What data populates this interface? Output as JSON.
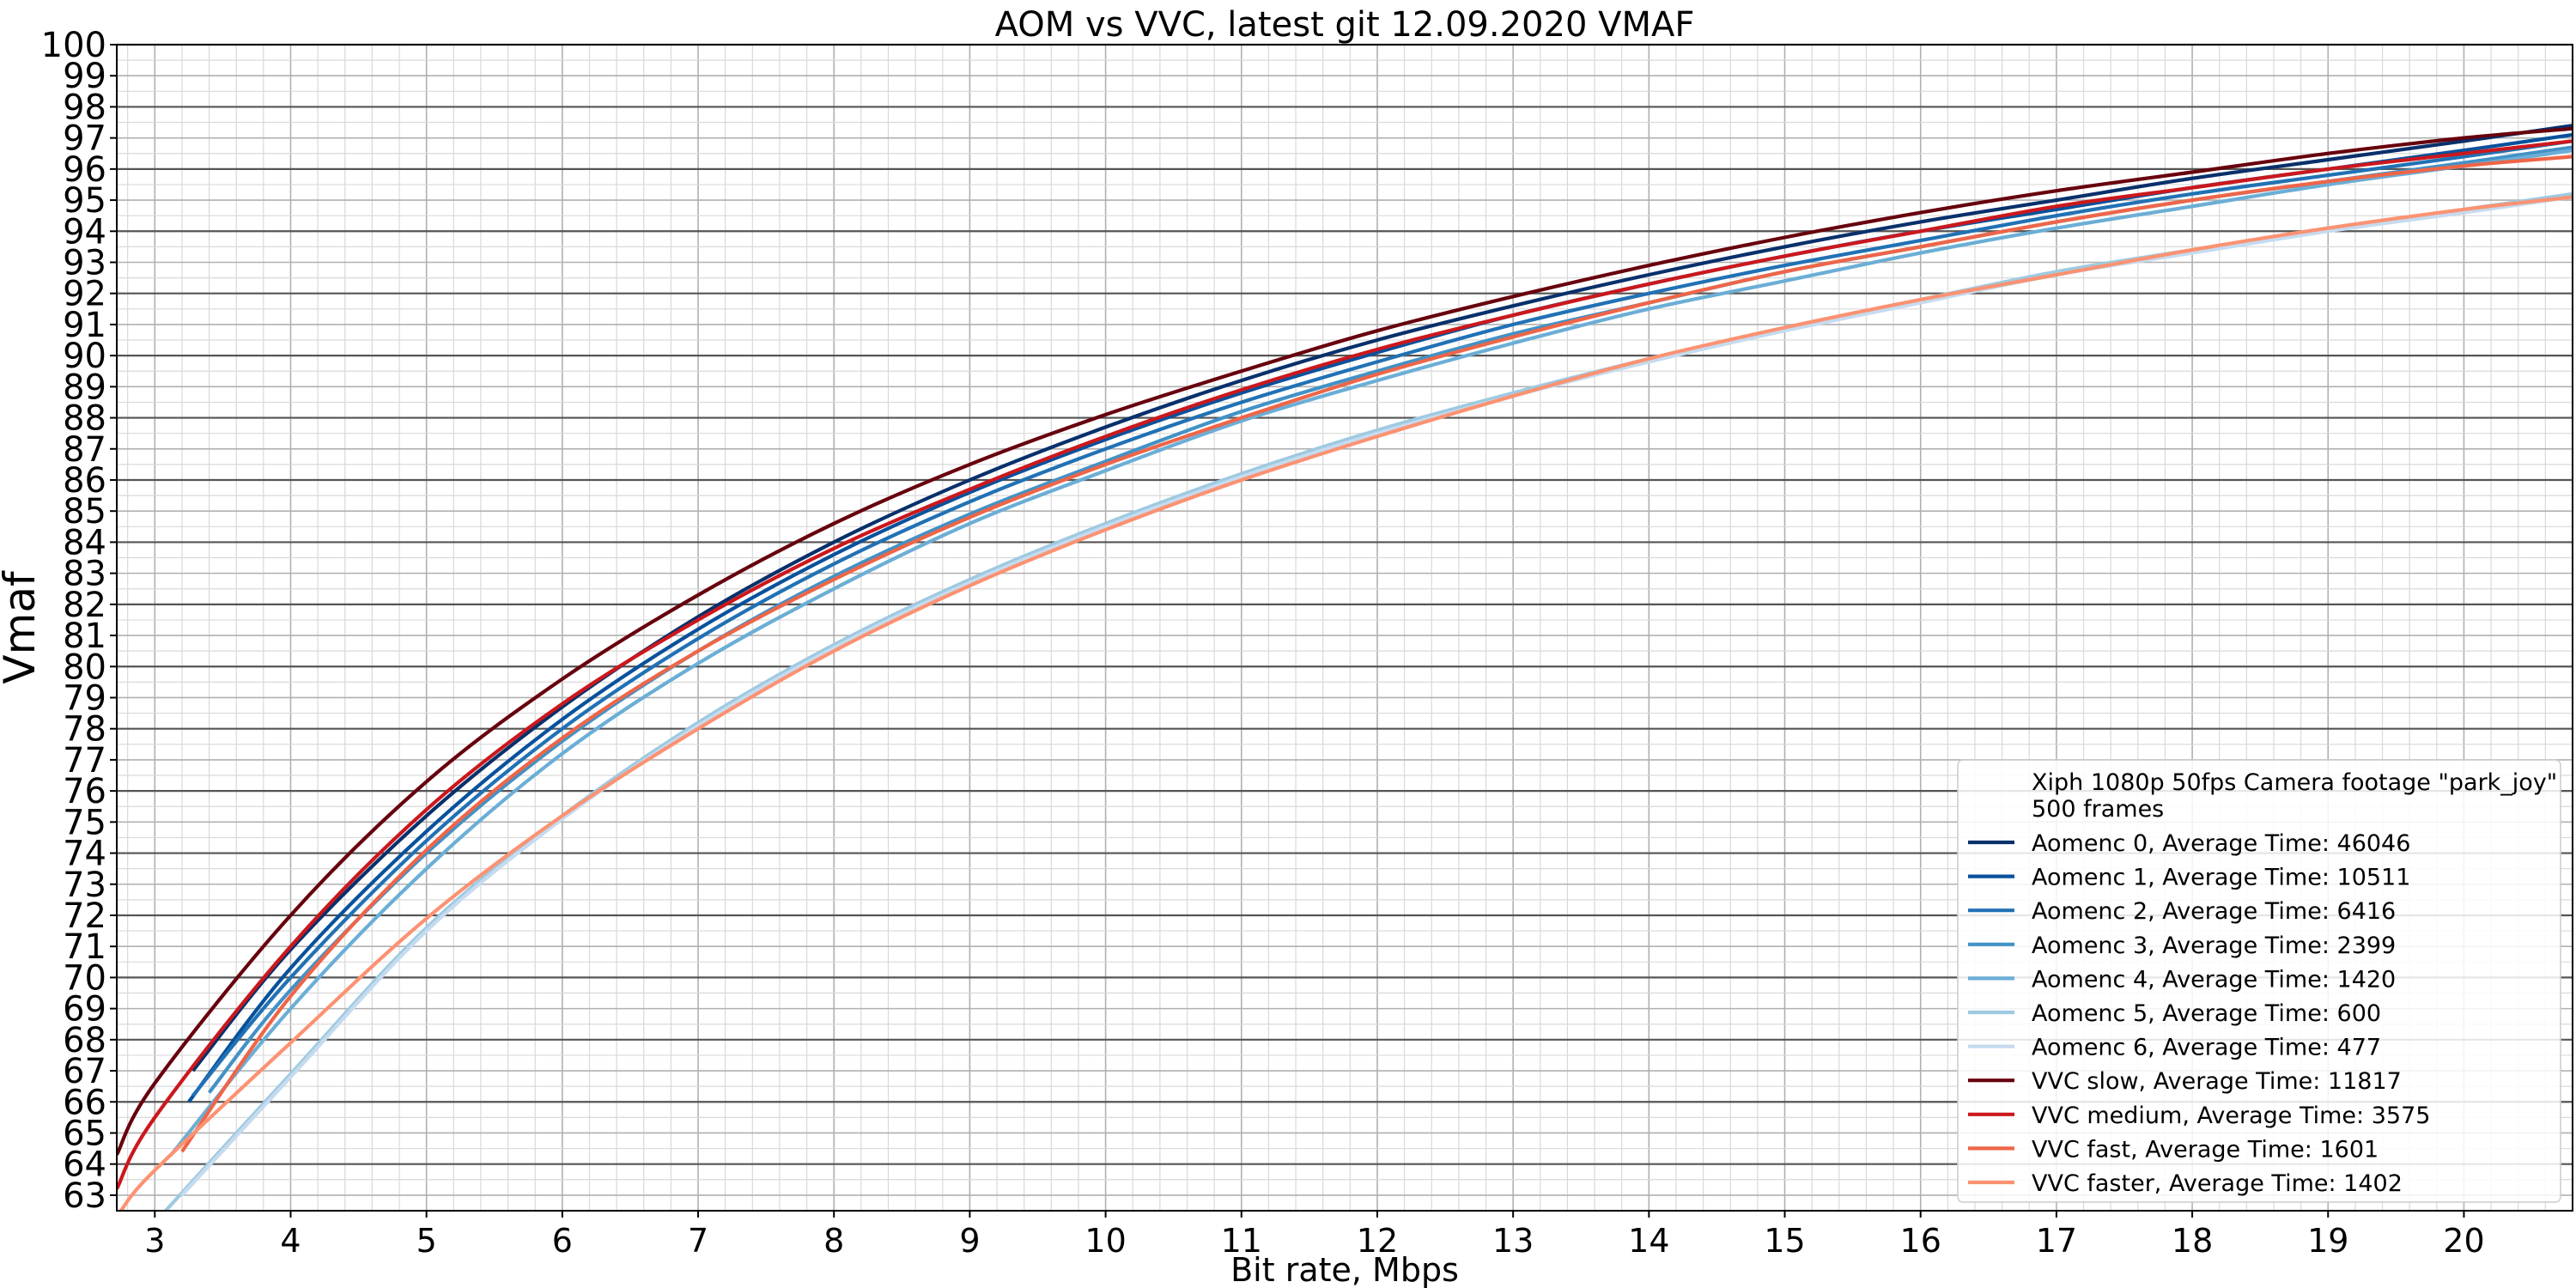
{
  "chart_data": {
    "type": "line",
    "title": "AOM vs VVC, latest git 12.09.2020 VMAF",
    "xlabel": "Bit rate, Mbps",
    "ylabel": "Vmaf",
    "xlim": [
      2.72,
      20.8
    ],
    "ylim": [
      62.5,
      100
    ],
    "x_ticks": [
      "3",
      "4",
      "5",
      "6",
      "7",
      "8",
      "9",
      "10",
      "11",
      "12",
      "13",
      "14",
      "15",
      "16",
      "17",
      "18",
      "19",
      "20"
    ],
    "y_ticks": [
      "63",
      "64",
      "65",
      "66",
      "67",
      "68",
      "69",
      "70",
      "71",
      "72",
      "73",
      "74",
      "75",
      "76",
      "77",
      "78",
      "79",
      "80",
      "81",
      "82",
      "83",
      "84",
      "85",
      "86",
      "87",
      "88",
      "89",
      "90",
      "91",
      "92",
      "93",
      "94",
      "95",
      "96",
      "97",
      "98",
      "99",
      "100"
    ],
    "grid": true,
    "legend": {
      "position": "bottom-right",
      "header": [
        "Xiph 1080p 50fps Camera footage \"park_joy\"",
        "500 frames"
      ]
    },
    "series": [
      {
        "name": "Aomenc 0, Average Time: 46046",
        "color": "#08306b",
        "x": [
          3.28,
          4,
          5,
          6,
          7,
          8,
          9,
          10,
          11,
          12,
          13,
          14,
          15,
          16,
          17,
          18,
          19,
          20,
          20.8
        ],
        "y": [
          67.0,
          70.9,
          75.2,
          78.7,
          81.6,
          84.0,
          86.0,
          87.7,
          89.2,
          90.5,
          91.6,
          92.6,
          93.5,
          94.3,
          95.0,
          95.7,
          96.3,
          96.9,
          97.4
        ]
      },
      {
        "name": "Aomenc 1, Average Time: 10511",
        "color": "#08519c",
        "x": [
          3.25,
          4,
          5,
          6,
          7,
          8,
          9,
          10,
          11,
          12,
          13,
          14,
          15,
          16,
          17,
          18,
          19,
          20,
          20.8
        ],
        "y": [
          66.0,
          70.3,
          74.7,
          78.3,
          81.2,
          83.6,
          85.6,
          87.3,
          88.8,
          90.1,
          91.3,
          92.3,
          93.2,
          94.0,
          94.7,
          95.4,
          96.0,
          96.6,
          97.1
        ]
      },
      {
        "name": "Aomenc 2, Average Time: 6416",
        "color": "#2171b5",
        "x": [
          3.28,
          4,
          5,
          6,
          7,
          8,
          9,
          10,
          11,
          12,
          13,
          14,
          15,
          16,
          17,
          18,
          19,
          20,
          20.8
        ],
        "y": [
          66.2,
          70.0,
          74.4,
          78.0,
          80.9,
          83.3,
          85.3,
          87.0,
          88.5,
          89.8,
          91.0,
          92.0,
          92.9,
          93.7,
          94.5,
          95.2,
          95.8,
          96.4,
          96.9
        ]
      },
      {
        "name": "Aomenc 3, Average Time: 2399",
        "color": "#4292c6",
        "x": [
          3.4,
          4,
          5,
          6,
          7,
          8,
          9,
          10,
          11,
          12,
          13,
          14,
          15,
          16,
          17,
          18,
          19,
          20,
          20.8
        ],
        "y": [
          66.3,
          69.6,
          74.0,
          77.6,
          80.5,
          82.9,
          84.9,
          86.6,
          88.2,
          89.5,
          90.7,
          91.7,
          92.7,
          93.5,
          94.3,
          95.0,
          95.6,
          96.2,
          96.7
        ]
      },
      {
        "name": "Aomenc 4, Average Time: 1420",
        "color": "#6baed6",
        "x": [
          3.12,
          4,
          5,
          6,
          7,
          8,
          9,
          10,
          11,
          12,
          13,
          14,
          15,
          16,
          17,
          18,
          19,
          20,
          20.8
        ],
        "y": [
          64.3,
          69.0,
          73.5,
          77.2,
          80.1,
          82.5,
          84.6,
          86.3,
          87.9,
          89.2,
          90.4,
          91.5,
          92.4,
          93.3,
          94.1,
          94.8,
          95.5,
          96.1,
          96.6
        ]
      },
      {
        "name": "Aomenc 5, Average Time: 600",
        "color": "#9ecae1",
        "x": [
          3.08,
          4,
          5,
          6,
          7,
          8,
          9,
          10,
          11,
          12,
          13,
          14,
          15,
          16,
          17,
          18,
          19,
          20,
          20.8
        ],
        "y": [
          62.5,
          66.9,
          71.6,
          75.2,
          78.2,
          80.7,
          82.8,
          84.6,
          86.2,
          87.6,
          88.8,
          89.9,
          90.9,
          91.8,
          92.7,
          93.4,
          94.1,
          94.7,
          95.2
        ]
      },
      {
        "name": "Aomenc 6, Average Time: 477",
        "color": "#c6dbef",
        "x": [
          3.2,
          4,
          5,
          6,
          7,
          8,
          9,
          10,
          11,
          12,
          13,
          14,
          15,
          16,
          17,
          18,
          19,
          20,
          20.8
        ],
        "y": [
          63.0,
          66.8,
          71.5,
          75.1,
          78.1,
          80.6,
          82.7,
          84.5,
          86.1,
          87.5,
          88.7,
          89.8,
          90.8,
          91.7,
          92.6,
          93.3,
          94.0,
          94.6,
          95.1
        ]
      },
      {
        "name": "VVC slow, Average Time: 11817",
        "color": "#67000d",
        "x": [
          2.72,
          3,
          4,
          5,
          6,
          7,
          8,
          9,
          10,
          11,
          12,
          13,
          14,
          15,
          16,
          17,
          18,
          19,
          20,
          20.8
        ],
        "y": [
          64.3,
          66.6,
          72.0,
          76.3,
          79.6,
          82.3,
          84.6,
          86.5,
          88.1,
          89.5,
          90.8,
          91.9,
          92.9,
          93.8,
          94.6,
          95.3,
          95.9,
          96.5,
          97.0,
          97.3
        ]
      },
      {
        "name": "VVC medium, Average Time: 3575",
        "color": "#cb181d",
        "x": [
          2.72,
          3,
          4,
          5,
          6,
          7,
          8,
          9,
          10,
          11,
          12,
          13,
          14,
          15,
          16,
          17,
          18,
          19,
          20,
          20.8
        ],
        "y": [
          63.2,
          65.5,
          71.0,
          75.4,
          78.8,
          81.5,
          83.8,
          85.7,
          87.4,
          88.9,
          90.2,
          91.3,
          92.3,
          93.2,
          94.0,
          94.8,
          95.4,
          96.0,
          96.5,
          96.9
        ]
      },
      {
        "name": "VVC fast, Average Time: 1601",
        "color": "#ef6548",
        "x": [
          3.2,
          4,
          5,
          6,
          7,
          8,
          9,
          10,
          11,
          12,
          13,
          14,
          15,
          16,
          17,
          18,
          19,
          20,
          20.8
        ],
        "y": [
          64.4,
          69.4,
          74.1,
          77.7,
          80.5,
          82.8,
          84.8,
          86.5,
          88.0,
          89.4,
          90.6,
          91.7,
          92.7,
          93.5,
          94.3,
          95.0,
          95.6,
          96.1,
          96.4
        ]
      },
      {
        "name": "VVC faster, Average Time: 1402",
        "color": "#fc9272",
        "x": [
          2.75,
          3,
          4,
          5,
          6,
          7,
          8,
          9,
          10,
          11,
          12,
          13,
          14,
          15,
          16,
          17,
          18,
          19,
          20,
          20.8
        ],
        "y": [
          62.5,
          63.8,
          67.9,
          71.9,
          75.2,
          78.0,
          80.5,
          82.6,
          84.4,
          86.0,
          87.4,
          88.7,
          89.9,
          90.9,
          91.8,
          92.6,
          93.4,
          94.1,
          94.7,
          95.1
        ]
      }
    ]
  }
}
